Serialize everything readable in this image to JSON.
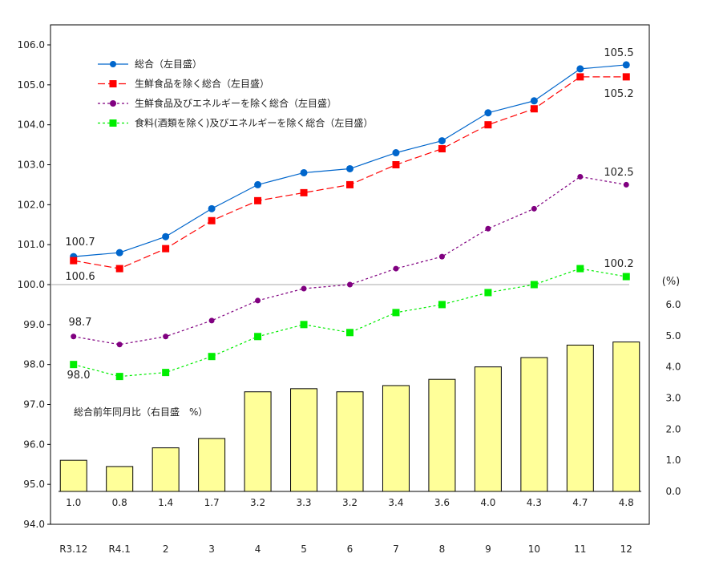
{
  "chart_data": {
    "type": "line+bar",
    "categories": [
      "R3.12",
      "R4.1",
      "2",
      "3",
      "4",
      "5",
      "6",
      "7",
      "8",
      "9",
      "10",
      "11",
      "12"
    ],
    "left_axis": {
      "ylim": [
        94.0,
        106.0
      ],
      "ticks": [
        "94.0",
        "95.0",
        "96.0",
        "97.0",
        "98.0",
        "99.0",
        "100.0",
        "101.0",
        "102.0",
        "103.0",
        "104.0",
        "105.0",
        "106.0"
      ],
      "reference_line": 100.0
    },
    "right_axis": {
      "label": "(%)",
      "ylim": [
        0.0,
        6.0
      ],
      "ticks": [
        "0.0",
        "1.0",
        "2.0",
        "3.0",
        "4.0",
        "5.0",
        "6.0"
      ]
    },
    "series": [
      {
        "name": "総合（左目盛）",
        "color": "#0066cc",
        "marker": "circle",
        "dash": "solid",
        "values": [
          100.7,
          100.8,
          101.2,
          101.9,
          102.5,
          102.8,
          102.9,
          103.3,
          103.6,
          104.3,
          104.6,
          105.4,
          105.5
        ]
      },
      {
        "name": "生鮮食品を除く総合（左目盛）",
        "color": "#ff0000",
        "marker": "square",
        "dash": "dashed",
        "values": [
          100.6,
          100.4,
          100.9,
          101.6,
          102.1,
          102.3,
          102.5,
          103.0,
          103.4,
          104.0,
          104.4,
          105.2,
          105.2
        ]
      },
      {
        "name": "生鮮食品及びエネルギーを除く総合（左目盛）",
        "color": "#800080",
        "marker": "circle",
        "dash": "dotted",
        "values": [
          98.7,
          98.5,
          98.7,
          99.1,
          99.6,
          99.9,
          100.0,
          100.4,
          100.7,
          101.4,
          101.9,
          102.7,
          102.5
        ]
      },
      {
        "name": "食料(酒類を除く)及びエネルギーを除く総合（左目盛）",
        "color": "#00ee00",
        "marker": "square",
        "dash": "dotted",
        "values": [
          98.0,
          97.7,
          97.8,
          98.2,
          98.7,
          99.0,
          98.8,
          99.3,
          99.5,
          99.8,
          100.0,
          100.4,
          100.2
        ]
      }
    ],
    "bars": {
      "name": "総合前年同月比（右目盛　%）",
      "color": "#ffff99",
      "values": [
        1.0,
        0.8,
        1.4,
        1.7,
        3.2,
        3.3,
        3.2,
        3.4,
        3.6,
        4.0,
        4.3,
        4.7,
        4.8
      ],
      "labels": [
        "1.0",
        "0.8",
        "1.4",
        "1.7",
        "3.2",
        "3.3",
        "3.2",
        "3.4",
        "3.6",
        "4.0",
        "4.3",
        "4.7",
        "4.8"
      ]
    },
    "annotations": [
      "100.7",
      "100.6",
      "98.7",
      "98.0",
      "105.5",
      "105.2",
      "102.5",
      "100.2"
    ],
    "legend_position": "top-left"
  }
}
